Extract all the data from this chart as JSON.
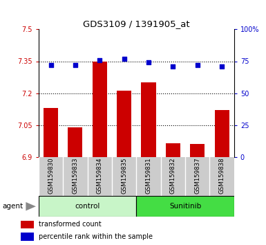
{
  "title": "GDS3109 / 1391905_at",
  "samples": [
    "GSM159830",
    "GSM159833",
    "GSM159834",
    "GSM159835",
    "GSM159831",
    "GSM159832",
    "GSM159837",
    "GSM159838"
  ],
  "bar_values": [
    7.13,
    7.04,
    7.35,
    7.21,
    7.25,
    6.965,
    6.96,
    7.12
  ],
  "percentile_values": [
    72,
    72,
    76,
    77,
    74,
    71,
    72,
    71
  ],
  "groups": [
    {
      "label": "control",
      "indices": [
        0,
        1,
        2,
        3
      ],
      "color": "#c8f5c8"
    },
    {
      "label": "Sunitinib",
      "indices": [
        4,
        5,
        6,
        7
      ],
      "color": "#44dd44"
    }
  ],
  "ylim_left": [
    6.9,
    7.5
  ],
  "ylim_right": [
    0,
    100
  ],
  "yticks_left": [
    6.9,
    7.05,
    7.2,
    7.35,
    7.5
  ],
  "yticks_right": [
    0,
    25,
    50,
    75,
    100
  ],
  "ytick_labels_left": [
    "6.9",
    "7.05",
    "7.2",
    "7.35",
    "7.5"
  ],
  "ytick_labels_right": [
    "0",
    "25",
    "50",
    "75",
    "100%"
  ],
  "hlines": [
    7.05,
    7.2,
    7.35
  ],
  "bar_color": "#cc0000",
  "scatter_color": "#0000cc",
  "left_tick_color": "#cc0000",
  "right_tick_color": "#0000cc",
  "agent_label": "agent",
  "legend_bar_label": "transformed count",
  "legend_scatter_label": "percentile rank within the sample",
  "sample_bg_color": "#cccccc",
  "plot_bg_color": "#ffffff"
}
